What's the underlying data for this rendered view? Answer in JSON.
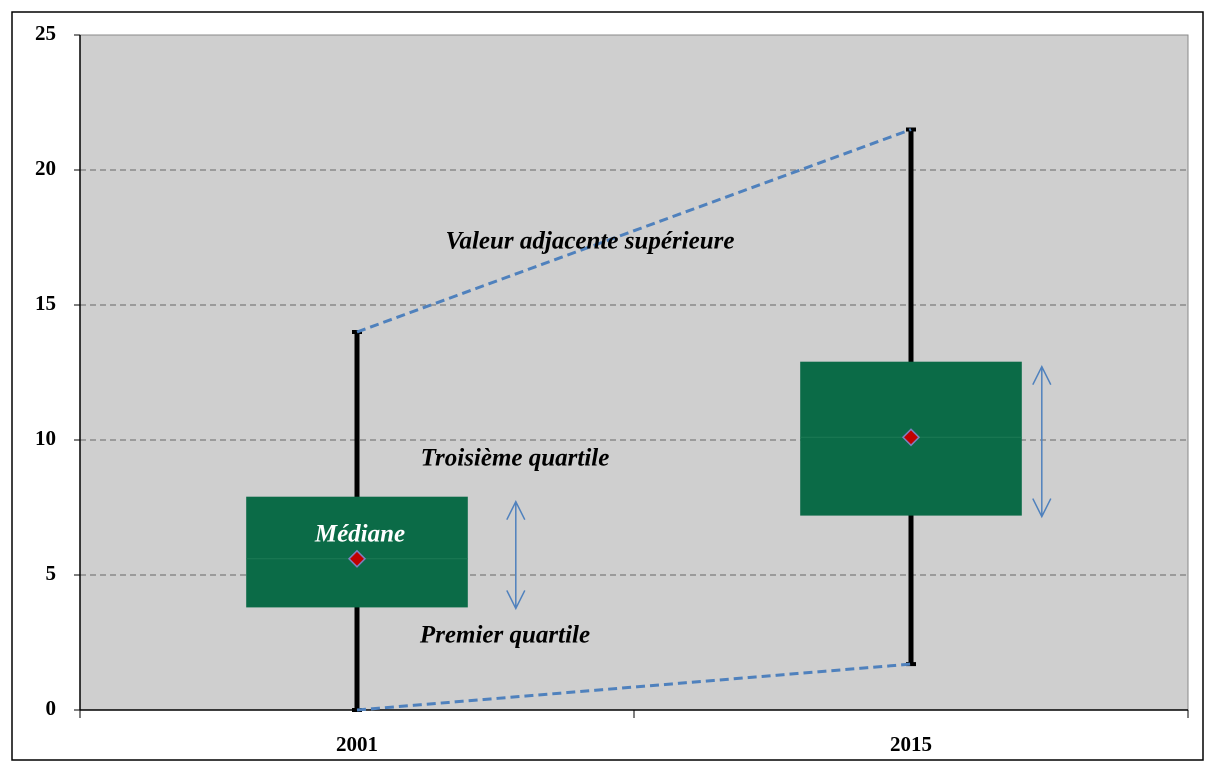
{
  "chart_data": {
    "type": "box",
    "categories": [
      "2001",
      "2015"
    ],
    "min": [
      0,
      1.7
    ],
    "q1": [
      3.8,
      7.2
    ],
    "median": [
      5.6,
      10.1
    ],
    "q3": [
      7.9,
      12.9
    ],
    "max": [
      14,
      21.5
    ],
    "box_color": "#0b6b47",
    "median_color": "#c00000",
    "whisker_color": "#000000",
    "link_color": "#4f81bd",
    "ylim": [
      0,
      25
    ],
    "yticks": [
      0,
      5,
      10,
      15,
      20,
      25
    ],
    "grid": true,
    "annotations": [
      "Valeur adjacente supérieure",
      "Troisième quartile",
      "Médiane",
      "Premier quartile"
    ]
  }
}
